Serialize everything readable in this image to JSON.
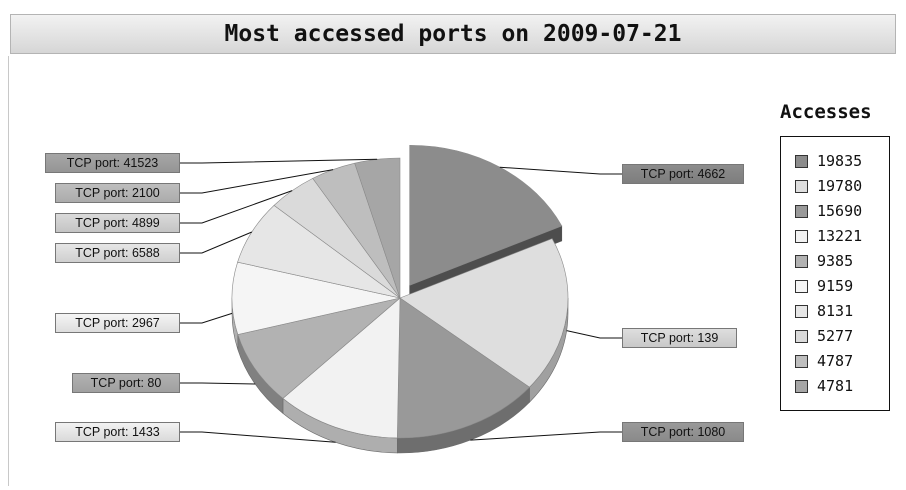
{
  "chart_data": {
    "type": "pie",
    "title": "Most accessed ports on 2009-07-21",
    "legend_title": "Accesses",
    "legend_position": "right",
    "three_d": true,
    "exploded_slice": "TCP port: 4662",
    "slices": [
      {
        "label": "TCP port: 4662",
        "value": 19835,
        "color": "#8c8c8c"
      },
      {
        "label": "TCP port: 139",
        "value": 19780,
        "color": "#dedede"
      },
      {
        "label": "TCP port: 1080",
        "value": 15690,
        "color": "#999999"
      },
      {
        "label": "TCP port: 1433",
        "value": 13221,
        "color": "#f2f2f2"
      },
      {
        "label": "TCP port: 80",
        "value": 9385,
        "color": "#b2b2b2"
      },
      {
        "label": "TCP port: 2967",
        "value": 9159,
        "color": "#f5f5f5"
      },
      {
        "label": "TCP port: 6588",
        "value": 8131,
        "color": "#e6e6e6"
      },
      {
        "label": "TCP port: 4899",
        "value": 5277,
        "color": "#dadada"
      },
      {
        "label": "TCP port: 2100",
        "value": 4787,
        "color": "#bebebe"
      },
      {
        "label": "TCP port: 41523",
        "value": 4781,
        "color": "#a6a6a6"
      }
    ]
  }
}
